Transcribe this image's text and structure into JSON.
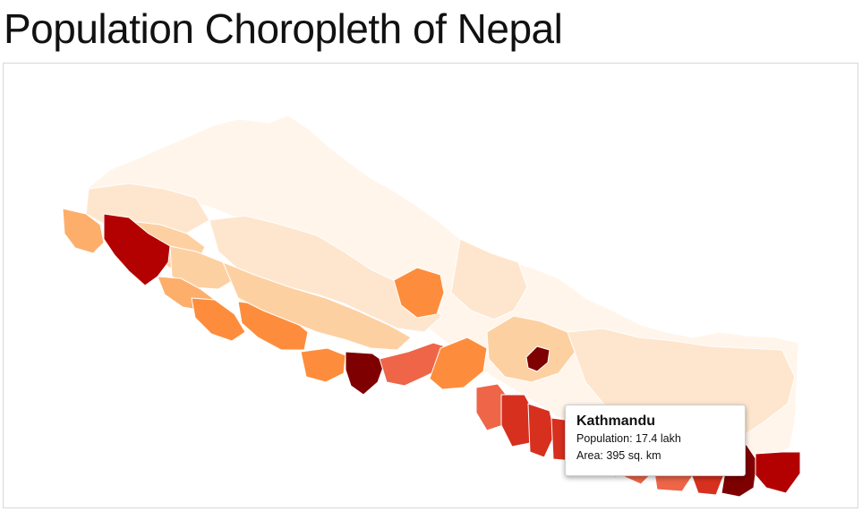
{
  "title": "Population Choropleth of Nepal",
  "palette": {
    "c0": "#fff5eb",
    "c1": "#fee6ce",
    "c2": "#fdd0a2",
    "c3": "#fdae6b",
    "c4": "#fd8d3c",
    "c5": "#ee6548",
    "c6": "#d7301f",
    "c7": "#b30000",
    "c8": "#7f0000"
  },
  "tooltip": {
    "district": "Kathmandu",
    "population_label": "Population:",
    "population_value": "17.4 lakh",
    "area_label": "Area:",
    "area_value": "395 sq. km"
  }
}
